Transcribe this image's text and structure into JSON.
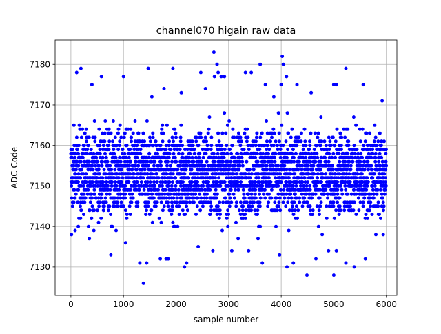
{
  "chart_data": {
    "type": "scatter",
    "title": "channel070 higain raw data",
    "xlabel": "sample number",
    "ylabel": "ADC Code",
    "xlim": [
      -300,
      6200
    ],
    "ylim": [
      7123,
      7186
    ],
    "xticks": [
      0,
      1000,
      2000,
      3000,
      4000,
      5000,
      6000
    ],
    "yticks": [
      7130,
      7140,
      7150,
      7160,
      7170,
      7180
    ],
    "grid": true,
    "marker_color": "#0000ff",
    "n_samples": 6000,
    "value_band": {
      "center": 7153,
      "dense_min": 7140,
      "dense_max": 7167
    },
    "series": [
      {
        "points": [
          [
            2720,
            7183
          ],
          [
            4020,
            7182
          ],
          [
            110,
            7178
          ],
          [
            4040,
            7180
          ],
          [
            3600,
            7180
          ],
          [
            2780,
            7180
          ],
          [
            1470,
            7179
          ],
          [
            1940,
            7179
          ],
          [
            190,
            7179
          ],
          [
            5230,
            7179
          ],
          [
            2800,
            7178
          ],
          [
            2470,
            7178
          ],
          [
            3320,
            7178
          ],
          [
            3430,
            7178
          ],
          [
            4100,
            7177
          ],
          [
            2860,
            7177
          ],
          [
            1000,
            7177
          ],
          [
            580,
            7177
          ],
          [
            2730,
            7177
          ],
          [
            2920,
            7177
          ],
          [
            4000,
            7175
          ],
          [
            5560,
            7175
          ],
          [
            4300,
            7175
          ],
          [
            5000,
            7175
          ],
          [
            3700,
            7175
          ],
          [
            400,
            7175
          ],
          [
            5050,
            7175
          ],
          [
            1770,
            7174
          ],
          [
            2560,
            7174
          ],
          [
            4570,
            7173
          ],
          [
            2100,
            7173
          ],
          [
            1540,
            7172
          ],
          [
            3860,
            7172
          ],
          [
            5920,
            7171
          ],
          [
            1380,
            7126
          ],
          [
            4490,
            7128
          ],
          [
            5000,
            7128
          ],
          [
            1310,
            7131
          ],
          [
            2160,
            7130
          ],
          [
            4110,
            7130
          ],
          [
            5390,
            7130
          ],
          [
            5230,
            7131
          ],
          [
            1440,
            7131
          ],
          [
            2200,
            7131
          ],
          [
            3640,
            7131
          ],
          [
            4230,
            7131
          ],
          [
            760,
            7133
          ],
          [
            3970,
            7133
          ],
          [
            1700,
            7132
          ],
          [
            1810,
            7132
          ],
          [
            1850,
            7132
          ],
          [
            4660,
            7132
          ],
          [
            5600,
            7132
          ],
          [
            2700,
            7134
          ],
          [
            4900,
            7134
          ],
          [
            5050,
            7134
          ],
          [
            3060,
            7134
          ],
          [
            3380,
            7134
          ],
          [
            2420,
            7135
          ],
          [
            1040,
            7136
          ],
          [
            350,
            7137
          ],
          [
            3180,
            7137
          ],
          [
            3560,
            7137
          ],
          [
            4780,
            7138
          ],
          [
            10,
            7138
          ],
          [
            5800,
            7138
          ],
          [
            5940,
            7138
          ],
          [
            140,
            7140
          ],
          [
            2030,
            7140
          ],
          [
            860,
            7139
          ]
        ]
      }
    ]
  }
}
